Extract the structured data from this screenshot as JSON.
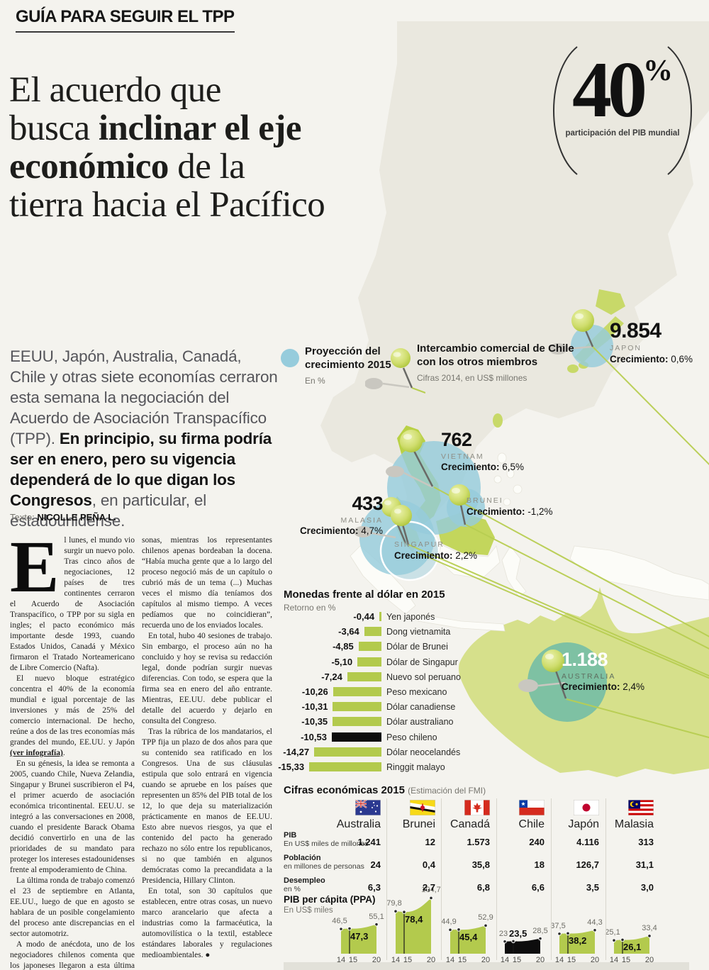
{
  "kicker": "GUÍA PARA SEGUIR EL TPP",
  "headline_lines": [
    [
      {
        "t": "El acuerdo que"
      }
    ],
    [
      {
        "t": "busca "
      },
      {
        "t": "inclinar el eje",
        "b": true
      }
    ],
    [
      {
        "t": "económico",
        "b": true
      },
      {
        "t": " de la"
      }
    ],
    [
      {
        "t": "tierra hacia el Pacífico"
      }
    ]
  ],
  "stat": {
    "paren_left": "(",
    "paren_right": ")",
    "value": "40",
    "unit": "%",
    "caption": "participación del PIB mundial"
  },
  "intro_segments": [
    {
      "t": "EEUU, Japón, Australia, Canadá, Chile y otras siete economías  cerraron esta semana la negociación del Acuerdo de Asociación Transpacífico (TPP). ",
      "b": false
    },
    {
      "t": "En principio, su firma podría ser en enero, pero su vigencia dependerá de lo que digan los Congresos",
      "b": true
    },
    {
      "t": ", en particular, el estadounidense.",
      "b": false
    }
  ],
  "byline": {
    "prefix": "Texto:",
    "name": "NICOLLE PEÑA L."
  },
  "article": {
    "dropcap": "E",
    "col1": [
      [
        {
          "t": "l lunes, el mundo vio surgir un nuevo polo. Tras cinco años de negociaciones, 12 países de tres continentes cerraron el Acuerdo de Asociación Transpacífico, o TPP por su sigla en ingles; el pacto económico más importante desde 1993, cuando Estados Unidos, Canadá y México firmaron el Tratado Norteamericano de Libre Comercio (Nafta)."
        }
      ],
      [
        {
          "t": "El nuevo bloque estratégico concentra el 40% de la economía mundial e igual porcentaje de las inversiones y más de 25% del comercio internacional. De hecho, reúne a dos de las tres economías más grandes del mundo, EE.UU. y Japón "
        },
        {
          "t": "(ver infografía)",
          "b": true,
          "u": true
        },
        {
          "t": "."
        }
      ],
      [
        {
          "t": "En su génesis, la idea se remonta a 2005, cuando Chile, Nueva Zelandia, Singapur y Brunei suscribieron el P4, el primer acuerdo de asociación económica tricontinental. EEU.U. se integró a las conversaciones en 2008, cuando el presidente Barack Obama decidió convertirlo en una de las prioridades de su mandato para proteger los intereses estadounidenses frente al empoderamiento de China."
        }
      ],
      [
        {
          "t": "La última ronda de trabajo comenzó el 23 de septiembre en Atlanta, EE.UU., luego de que en agosto se hablara de un posible congelamiento del proceso ante discrepancias en el sector automotriz."
        }
      ],
      [
        {
          "t": "A modo de anécdota, uno de los negociadores chilenos comenta que los japoneses llegaron a esta última fase con una delegación de 120 per-"
        }
      ]
    ],
    "col2": [
      [
        {
          "t": "sonas, mientras los representantes chilenos apenas bordeaban la docena. “Había mucha gente que a lo largo del proceso negoció más de un capítulo o cubrió más de un tema (...) Muchas veces el mismo día teníamos dos capítulos al mismo tiempo. A veces pedíamos que no coincidieran”, recuerda uno de los enviados locales."
        }
      ],
      [
        {
          "t": "En total, hubo 40 sesiones de trabajo. Sin embargo, el proceso aún no ha concluido y hoy se revisa su redacción legal, donde podrían surgir nuevas diferencias. Con todo, se espera que la firma sea en enero del año entrante. Mientras, EE.UU. debe publicar el detalle del acuerdo y dejarlo en consulta del Congreso."
        }
      ],
      [
        {
          "t": "Tras la rúbrica de los mandatarios, el TPP fija un plazo de dos años para que su contenido sea ratificado en los Congresos. Una de sus cláusulas estipula que solo entrará en vigencia cuando se apruebe en los países que representen un 85% del PIB total de los 12, lo que deja su materialización prácticamente en manos de EE.UU. Esto abre nuevos riesgos, ya que el contenido del pacto ha generado rechazo no sólo entre los republicanos, si no que también en algunos demócratas como la precandidata a la Presidencia, Hillary Clinton."
        }
      ],
      [
        {
          "t": "En total, son 30 capítulos que establecen, entre otras cosas, un nuevo marco arancelario que afecta a industrias como la farmacéutica, la automovilística o la textil, establece estándares laborales y regulaciones medioambientales. "
        },
        {
          "t": "●",
          "b": true
        }
      ]
    ]
  },
  "map_legend": {
    "growth_title": "Proyección del crecimiento 2015",
    "growth_sub": "En %",
    "trade_title": "Intercambio comercial de Chile con los otros miembros",
    "trade_sub": "Cifras 2014, en US$ millones"
  },
  "map_countries": [
    {
      "id": "japan",
      "value": "9.854",
      "name": "JAPON",
      "growth_label": "Crecimiento:",
      "growth_value": "0,6%"
    },
    {
      "id": "vietnam",
      "value": "762",
      "name": "VIETNAM",
      "growth_label": "Crecimiento:",
      "growth_value": "6,5%"
    },
    {
      "id": "brunei",
      "value": "",
      "name": "BRUNEI",
      "growth_label": "Crecimiento:",
      "growth_value": "-1,2%"
    },
    {
      "id": "malaysia",
      "value": "433",
      "name": "MALASIA",
      "growth_label": "Crecimiento:",
      "growth_value": "4,7%"
    },
    {
      "id": "singapore",
      "value": "",
      "name": "SINGAPUR",
      "growth_label": "Crecimiento:",
      "growth_value": "2,2%"
    },
    {
      "id": "australia",
      "value": "1.188",
      "name": "AUSTRALIA",
      "growth_label": "Crecimiento:",
      "growth_value": "2,4%"
    }
  ],
  "chart_data": [
    {
      "type": "bar",
      "title": "Monedas frente al dólar en 2015",
      "subtitle": "Retorno en %",
      "orientation": "horizontal, bars grow left from common right edge",
      "xlim": [
        -16,
        0
      ],
      "items": [
        {
          "label": "-0,44",
          "value": -0.44,
          "currency": "Yen japonés",
          "color": "#b3ca4d"
        },
        {
          "label": "-3,64",
          "value": -3.64,
          "currency": "Dong vietnamita",
          "color": "#b3ca4d"
        },
        {
          "label": "-4,85",
          "value": -4.85,
          "currency": "Dólar de Brunei",
          "color": "#b3ca4d"
        },
        {
          "label": "-5,10",
          "value": -5.1,
          "currency": "Dólar de Singapur",
          "color": "#b3ca4d"
        },
        {
          "label": "-7,24",
          "value": -7.24,
          "currency": "Nuevo sol peruano",
          "color": "#b3ca4d"
        },
        {
          "label": "-10,26",
          "value": -10.26,
          "currency": "Peso mexicano",
          "color": "#b3ca4d"
        },
        {
          "label": "-10,31",
          "value": -10.31,
          "currency": "Dólar canadiense",
          "color": "#b3ca4d"
        },
        {
          "label": "-10,35",
          "value": -10.35,
          "currency": "Dólar australiano",
          "color": "#b3ca4d"
        },
        {
          "label": "-10,53",
          "value": -10.53,
          "currency": "Peso chileno",
          "color": "#0d0d0d"
        },
        {
          "label": "-14,27",
          "value": -14.27,
          "currency": "Dólar neocelandés",
          "color": "#b3ca4d"
        },
        {
          "label": "-15,33",
          "value": -15.33,
          "currency": "Ringgit malayo",
          "color": "#b3ca4d"
        }
      ]
    },
    {
      "type": "area",
      "title": "PIB per cápita (PPA)",
      "subtitle": "En US$ miles",
      "x_labels": [
        "14",
        "15",
        "20"
      ],
      "series": [
        {
          "name": "Australia",
          "values": [
            46.5,
            47.3,
            55.1
          ],
          "labels": [
            "46,5",
            "47,3",
            "55,1"
          ],
          "color": "#b3ca4d"
        },
        {
          "name": "Brunei",
          "values": [
            79.8,
            78.4,
            104.7
          ],
          "labels": [
            "79,8",
            "78,4",
            "104,7"
          ],
          "color": "#b3ca4d"
        },
        {
          "name": "Canadá",
          "values": [
            44.9,
            45.4,
            52.9
          ],
          "labels": [
            "44,9",
            "45,4",
            "52,9"
          ],
          "color": "#b3ca4d"
        },
        {
          "name": "Chile",
          "values": [
            23,
            23.5,
            28.5
          ],
          "labels": [
            "23",
            "23,5",
            "28,5"
          ],
          "color": "#0d0d0d"
        },
        {
          "name": "Japón",
          "values": [
            37.5,
            38.2,
            44.3
          ],
          "labels": [
            "37,5",
            "38,2",
            "44,3"
          ],
          "color": "#b3ca4d"
        },
        {
          "name": "Malasia",
          "values": [
            25.1,
            26.1,
            33.4
          ],
          "labels": [
            "25,1",
            "26,1",
            "33,4"
          ],
          "color": "#b3ca4d"
        }
      ]
    },
    {
      "type": "bubble-map",
      "title": "Intercambio comercial de Chile con los otros miembros (Cifras 2014, en US$ millones) y Proyección del crecimiento 2015 (En %)",
      "points": [
        {
          "country": "Japón",
          "trade": 9854,
          "growth_pct": 0.6
        },
        {
          "country": "Vietnam",
          "trade": 762,
          "growth_pct": 6.5
        },
        {
          "country": "Brunei",
          "trade": null,
          "growth_pct": -1.2
        },
        {
          "country": "Malasia",
          "trade": 433,
          "growth_pct": 4.7
        },
        {
          "country": "Singapur",
          "trade": null,
          "growth_pct": 2.2
        },
        {
          "country": "Australia",
          "trade": 1188,
          "growth_pct": 2.4
        }
      ]
    }
  ],
  "economics_table": {
    "title": "Cifras económicas 2015",
    "title_note": "(Estimación del FMI)",
    "columns": [
      {
        "id": "australia",
        "country": "Australia",
        "flag_icon": "flag-australia-icon"
      },
      {
        "id": "brunei",
        "country": "Brunei",
        "flag_icon": "flag-brunei-icon"
      },
      {
        "id": "canada",
        "country": "Canadá",
        "flag_icon": "flag-canada-icon"
      },
      {
        "id": "chile",
        "country": "Chile",
        "flag_icon": "flag-chile-icon"
      },
      {
        "id": "japan",
        "country": "Japón",
        "flag_icon": "flag-japan-icon"
      },
      {
        "id": "malaysia",
        "country": "Malasia",
        "flag_icon": "flag-malaysia-icon"
      }
    ],
    "rows": [
      {
        "label": "PIB",
        "sublabel": "En US$ miles de millones",
        "values": [
          "1.241",
          "12",
          "1.573",
          "240",
          "4.116",
          "313"
        ]
      },
      {
        "label": "Población",
        "sublabel": "en millones de personas",
        "values": [
          "24",
          "0,4",
          "35,8",
          "18",
          "126,7",
          "31,1"
        ]
      },
      {
        "label": "Desempleo",
        "sublabel": "en %",
        "values": [
          "6,3",
          "2,7",
          "6,8",
          "6,6",
          "3,5",
          "3,0"
        ]
      }
    ]
  }
}
